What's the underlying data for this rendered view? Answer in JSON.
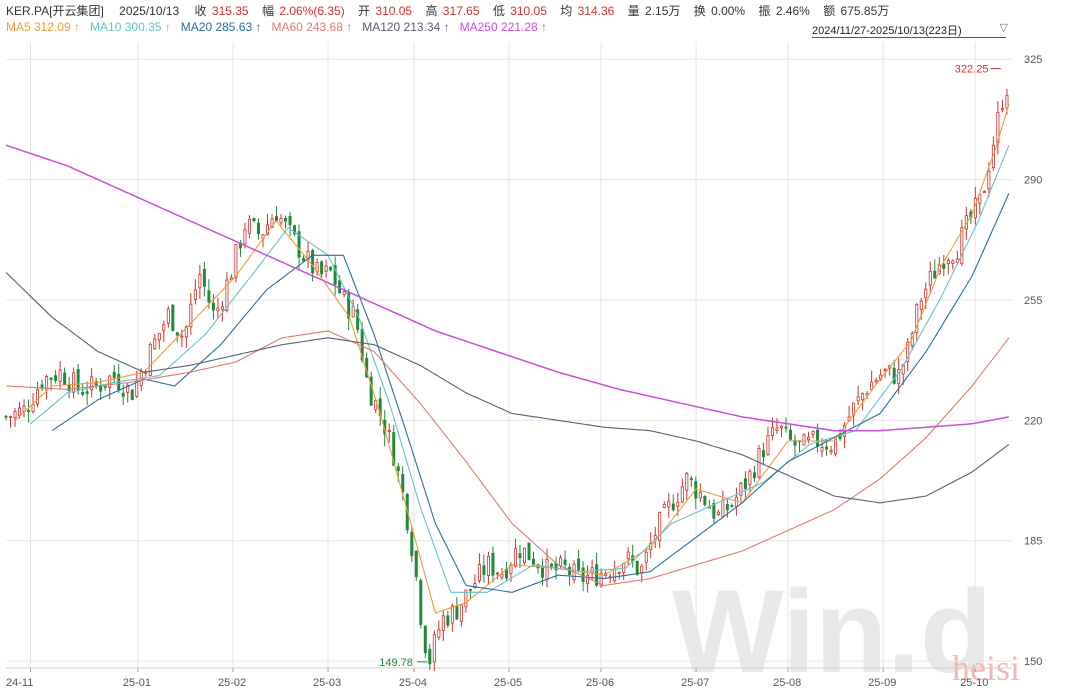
{
  "info": {
    "symbol": "KER.PA[开云集团]",
    "date": "2025/10/13",
    "close_label": "收",
    "close": "315.35",
    "change_label": "幅",
    "change": "2.06%(6.35)",
    "open_label": "开",
    "open": "310.05",
    "high_label": "高",
    "high": "317.65",
    "low_label": "低",
    "low": "310.05",
    "avg_label": "均",
    "avg": "314.36",
    "vol_label": "量",
    "vol": "2.15万",
    "turnover_label": "换",
    "turnover": "0.00%",
    "amp_label": "振",
    "amp": "2.46%",
    "amount_label": "额",
    "amount": "675.85万"
  },
  "range": {
    "label": "2024/11/27-2025/10/13(223日)"
  },
  "watermark": {
    "logo": "Win.d",
    "tag": "heisi"
  },
  "colors": {
    "up": "#d0312d",
    "down": "#1f8a3b",
    "ma5": "#f29a3c",
    "ma10": "#66c2c9",
    "ma20": "#2b6f9e",
    "ma60": "#e07a6b",
    "ma120": "#5a5f7a",
    "ma250": "#c84fd8"
  },
  "chart_data": {
    "type": "candlestick",
    "x_ticks": [
      "24-11",
      "25-01",
      "25-02",
      "25-03",
      "25-04",
      "25-05",
      "25-06",
      "25-07",
      "25-08",
      "25-09",
      "25-10"
    ],
    "y_ticks": [
      325,
      290,
      255,
      220,
      185,
      150
    ],
    "ylim": [
      148,
      330
    ],
    "ma_legend": [
      {
        "key": "ma5",
        "label": "MA5",
        "value": "312.09",
        "arrow": "↑"
      },
      {
        "key": "ma10",
        "label": "MA10",
        "value": "300.35",
        "arrow": "↑"
      },
      {
        "key": "ma20",
        "label": "MA20",
        "value": "285.63",
        "arrow": "↑"
      },
      {
        "key": "ma60",
        "label": "MA60",
        "value": "243.68",
        "arrow": "↑"
      },
      {
        "key": "ma120",
        "label": "MA120",
        "value": "213.34",
        "arrow": "↑"
      },
      {
        "key": "ma250",
        "label": "MA250",
        "value": "221.28",
        "arrow": "↑"
      }
    ],
    "annotations": {
      "max": {
        "label": "322.25",
        "value": 322.25,
        "month": "25-10"
      },
      "min": {
        "label": "149.78",
        "value": 149.78,
        "month": "25-04"
      }
    },
    "price_path": [
      [
        0,
        221
      ],
      [
        6,
        223
      ],
      [
        12,
        232
      ],
      [
        18,
        234
      ],
      [
        24,
        229
      ],
      [
        30,
        230
      ],
      [
        35,
        233
      ],
      [
        41,
        228
      ],
      [
        47,
        240
      ],
      [
        53,
        251
      ],
      [
        58,
        244
      ],
      [
        63,
        263
      ],
      [
        68,
        250
      ],
      [
        73,
        262
      ],
      [
        78,
        277
      ],
      [
        83,
        274
      ],
      [
        88,
        281
      ],
      [
        92,
        275
      ],
      [
        97,
        268
      ],
      [
        102,
        262
      ],
      [
        106,
        263
      ],
      [
        110,
        255
      ],
      [
        114,
        250
      ],
      [
        118,
        230
      ],
      [
        122,
        222
      ],
      [
        126,
        212
      ],
      [
        130,
        196
      ],
      [
        133,
        180
      ],
      [
        136,
        158
      ],
      [
        138,
        150
      ],
      [
        142,
        162
      ],
      [
        147,
        165
      ],
      [
        152,
        172
      ],
      [
        157,
        178
      ],
      [
        162,
        176
      ],
      [
        167,
        183
      ],
      [
        172,
        180
      ],
      [
        177,
        176
      ],
      [
        182,
        177
      ],
      [
        187,
        174
      ],
      [
        192,
        175
      ],
      [
        197,
        177
      ],
      [
        202,
        180
      ],
      [
        207,
        176
      ],
      [
        212,
        188
      ],
      [
        217,
        196
      ],
      [
        222,
        203
      ],
      [
        227,
        198
      ],
      [
        232,
        192
      ],
      [
        237,
        196
      ],
      [
        242,
        203
      ],
      [
        247,
        212
      ],
      [
        252,
        218
      ],
      [
        255,
        214
      ],
      [
        259,
        212
      ],
      [
        264,
        214
      ],
      [
        270,
        213
      ],
      [
        276,
        223
      ],
      [
        281,
        230
      ],
      [
        286,
        234
      ],
      [
        291,
        233
      ],
      [
        294,
        240
      ],
      [
        298,
        255
      ],
      [
        302,
        262
      ],
      [
        306,
        268
      ],
      [
        310,
        270
      ],
      [
        314,
        278
      ],
      [
        318,
        284
      ],
      [
        321,
        297
      ],
      [
        324,
        310
      ],
      [
        326,
        318
      ],
      [
        327,
        315
      ]
    ],
    "ma_paths": {
      "ma5": [
        [
          3,
          220
        ],
        [
          15,
          230
        ],
        [
          30,
          231
        ],
        [
          45,
          234
        ],
        [
          60,
          248
        ],
        [
          75,
          262
        ],
        [
          88,
          278
        ],
        [
          100,
          265
        ],
        [
          112,
          250
        ],
        [
          122,
          222
        ],
        [
          132,
          190
        ],
        [
          140,
          164
        ],
        [
          150,
          167
        ],
        [
          165,
          178
        ],
        [
          180,
          177
        ],
        [
          195,
          175
        ],
        [
          210,
          183
        ],
        [
          225,
          200
        ],
        [
          240,
          196
        ],
        [
          255,
          214
        ],
        [
          270,
          214
        ],
        [
          285,
          232
        ],
        [
          295,
          243
        ],
        [
          305,
          265
        ],
        [
          315,
          280
        ],
        [
          323,
          300
        ],
        [
          327,
          312
        ]
      ],
      "ma10": [
        [
          8,
          219
        ],
        [
          20,
          228
        ],
        [
          35,
          231
        ],
        [
          50,
          233
        ],
        [
          65,
          245
        ],
        [
          80,
          262
        ],
        [
          92,
          276
        ],
        [
          105,
          268
        ],
        [
          115,
          250
        ],
        [
          125,
          225
        ],
        [
          135,
          195
        ],
        [
          145,
          170
        ],
        [
          157,
          170
        ],
        [
          172,
          178
        ],
        [
          187,
          176
        ],
        [
          202,
          177
        ],
        [
          217,
          190
        ],
        [
          232,
          196
        ],
        [
          247,
          202
        ],
        [
          262,
          213
        ],
        [
          277,
          217
        ],
        [
          292,
          235
        ],
        [
          305,
          256
        ],
        [
          317,
          278
        ],
        [
          327,
          300
        ]
      ],
      "ma20": [
        [
          15,
          217
        ],
        [
          30,
          226
        ],
        [
          45,
          232
        ],
        [
          55,
          230
        ],
        [
          70,
          242
        ],
        [
          85,
          258
        ],
        [
          100,
          268
        ],
        [
          110,
          268
        ],
        [
          120,
          245
        ],
        [
          130,
          218
        ],
        [
          140,
          190
        ],
        [
          150,
          172
        ],
        [
          165,
          170
        ],
        [
          180,
          175
        ],
        [
          195,
          174
        ],
        [
          210,
          176
        ],
        [
          225,
          186
        ],
        [
          240,
          196
        ],
        [
          255,
          208
        ],
        [
          270,
          215
        ],
        [
          285,
          222
        ],
        [
          300,
          240
        ],
        [
          315,
          262
        ],
        [
          327,
          286
        ]
      ],
      "ma60": [
        [
          0,
          230
        ],
        [
          20,
          229
        ],
        [
          40,
          231
        ],
        [
          60,
          234
        ],
        [
          75,
          237
        ],
        [
          90,
          244
        ],
        [
          105,
          246
        ],
        [
          120,
          240
        ],
        [
          135,
          225
        ],
        [
          150,
          208
        ],
        [
          165,
          190
        ],
        [
          180,
          178
        ],
        [
          195,
          172
        ],
        [
          210,
          174
        ],
        [
          225,
          178
        ],
        [
          240,
          182
        ],
        [
          255,
          188
        ],
        [
          270,
          194
        ],
        [
          285,
          203
        ],
        [
          300,
          215
        ],
        [
          315,
          230
        ],
        [
          327,
          244
        ]
      ],
      "ma120": [
        [
          0,
          263
        ],
        [
          15,
          250
        ],
        [
          30,
          240
        ],
        [
          45,
          234
        ],
        [
          60,
          236
        ],
        [
          75,
          239
        ],
        [
          90,
          242
        ],
        [
          105,
          244
        ],
        [
          120,
          242
        ],
        [
          135,
          236
        ],
        [
          150,
          228
        ],
        [
          165,
          222
        ],
        [
          180,
          220
        ],
        [
          195,
          218
        ],
        [
          210,
          217
        ],
        [
          225,
          214
        ],
        [
          240,
          210
        ],
        [
          255,
          204
        ],
        [
          270,
          198
        ],
        [
          285,
          196
        ],
        [
          300,
          198
        ],
        [
          315,
          205
        ],
        [
          327,
          213
        ]
      ],
      "ma250": [
        [
          0,
          300
        ],
        [
          20,
          294
        ],
        [
          40,
          286
        ],
        [
          60,
          278
        ],
        [
          80,
          270
        ],
        [
          100,
          262
        ],
        [
          120,
          254
        ],
        [
          140,
          246
        ],
        [
          160,
          240
        ],
        [
          180,
          234
        ],
        [
          200,
          229
        ],
        [
          220,
          225
        ],
        [
          240,
          221
        ],
        [
          255,
          219
        ],
        [
          270,
          217
        ],
        [
          285,
          217
        ],
        [
          300,
          218
        ],
        [
          315,
          219
        ],
        [
          327,
          221
        ]
      ]
    }
  }
}
